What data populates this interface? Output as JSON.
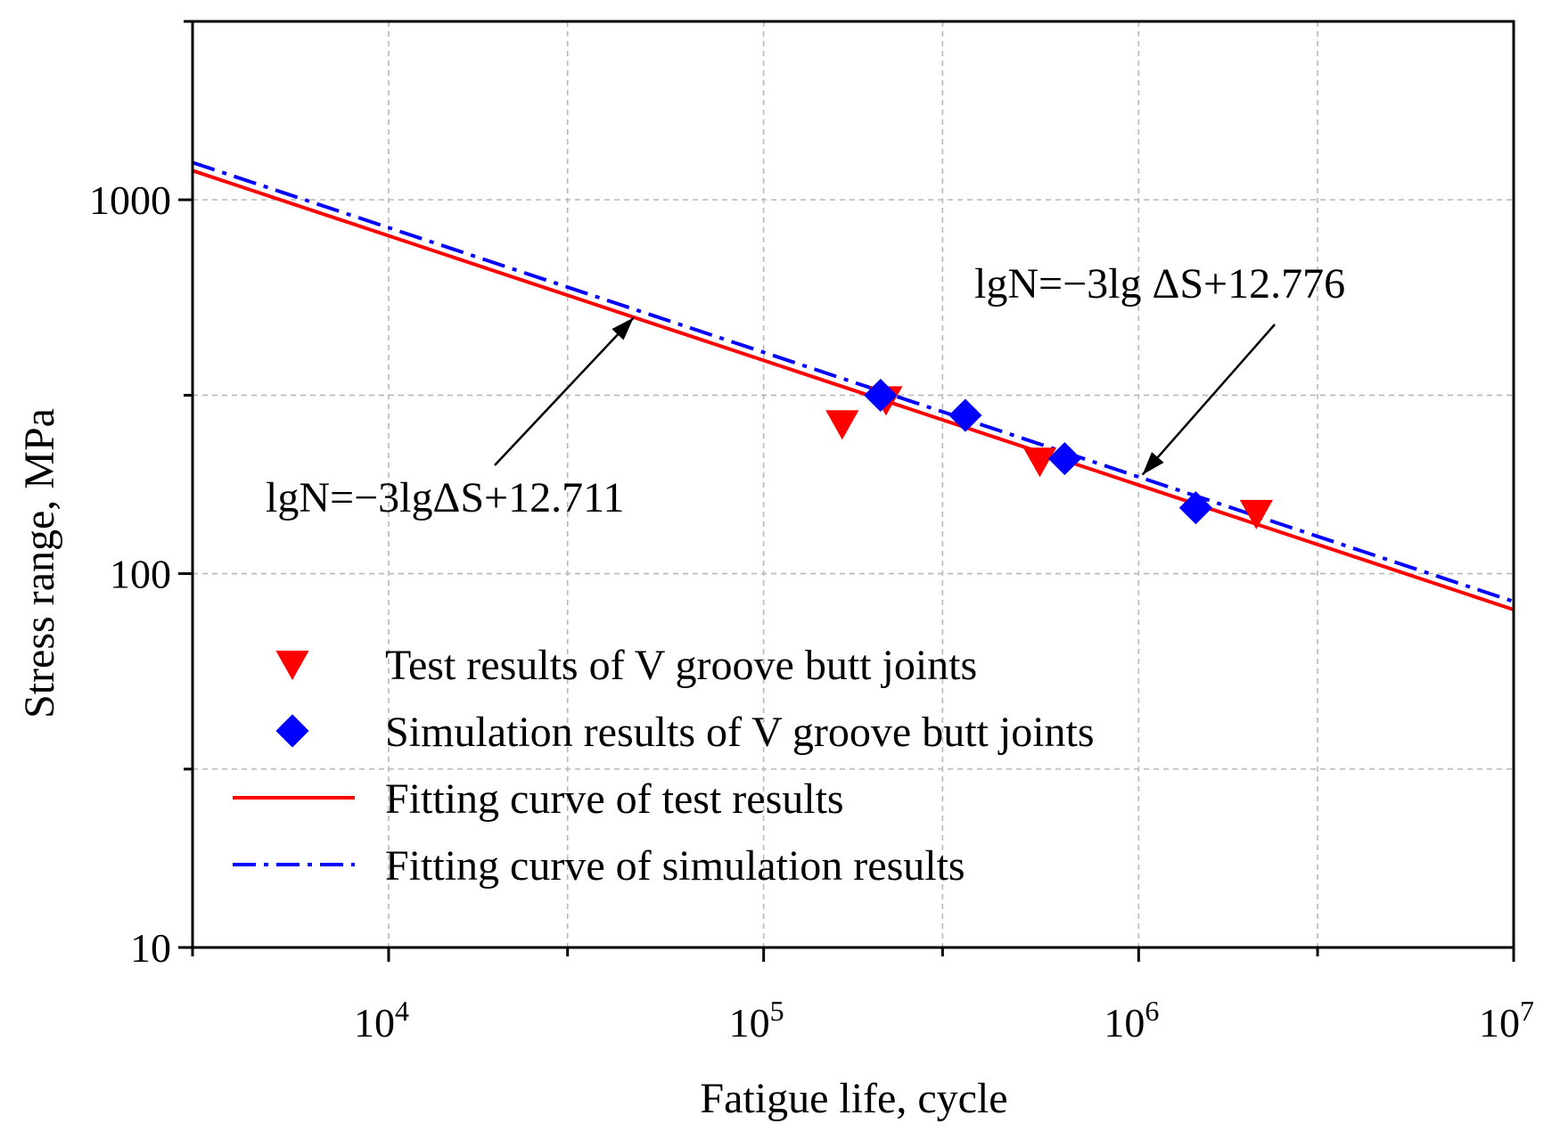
{
  "chart_data": {
    "type": "scatter",
    "x_scale": "log",
    "y_scale": "log",
    "xlabel": "Fatigue life, cycle",
    "ylabel": "Stress range, MPa",
    "xlim": [
      3000,
      10000000
    ],
    "ylim": [
      10,
      3000
    ],
    "x_ticks": [
      {
        "value": 10000,
        "base": "10",
        "exp": "4"
      },
      {
        "value": 100000,
        "base": "10",
        "exp": "5"
      },
      {
        "value": 1000000,
        "base": "10",
        "exp": "6"
      },
      {
        "value": 10000000,
        "base": "10",
        "exp": "7"
      }
    ],
    "y_ticks": [
      {
        "value": 10,
        "label": "10"
      },
      {
        "value": 100,
        "label": "100"
      },
      {
        "value": 1000,
        "label": "1000"
      }
    ],
    "grid": true,
    "series": [
      {
        "name": "Test results of V groove butt joints",
        "kind": "scatter",
        "marker": "triangle-down",
        "color": "#ff0000",
        "points": [
          {
            "x": 162000,
            "y": 252
          },
          {
            "x": 212000,
            "y": 292
          },
          {
            "x": 545000,
            "y": 200
          },
          {
            "x": 2060000,
            "y": 145
          }
        ]
      },
      {
        "name": "Simulation results of V groove butt joints",
        "kind": "scatter",
        "marker": "diamond",
        "color": "#0000ff",
        "points": [
          {
            "x": 205000,
            "y": 300
          },
          {
            "x": 345000,
            "y": 265
          },
          {
            "x": 635000,
            "y": 203
          },
          {
            "x": 1420000,
            "y": 150
          }
        ]
      },
      {
        "name": "Fitting curve of test results",
        "kind": "line",
        "style": "solid",
        "color": "#ff0000",
        "equation": {
          "slope": -3,
          "intercept": 12.711
        }
      },
      {
        "name": "Fitting curve of simulation results",
        "kind": "line",
        "style": "dash-dot",
        "color": "#0000ff",
        "equation": {
          "slope": -3,
          "intercept": 12.776
        }
      }
    ],
    "annotations": [
      {
        "text": "lgN=−3lgΔS+12.711",
        "target_series": "Fitting curve of test results",
        "arrow_to": {
          "x": 45000,
          "y": 500
        }
      },
      {
        "text": "lgN=−3lg ΔS+12.776",
        "target_series": "Fitting curve of simulation results",
        "arrow_to": {
          "x": 980000,
          "y": 176
        }
      }
    ],
    "legend_placement": "bottom-left"
  }
}
